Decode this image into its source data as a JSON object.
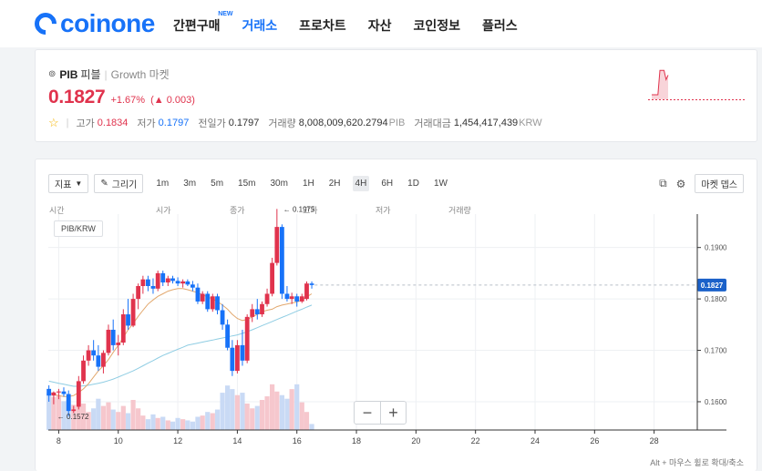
{
  "header": {
    "logo_text": "coinone",
    "nav": [
      {
        "label": "간편구매",
        "badge": "NEW"
      },
      {
        "label": "거래소"
      },
      {
        "label": "프로차트"
      },
      {
        "label": "자산"
      },
      {
        "label": "코인정보"
      },
      {
        "label": "플러스"
      }
    ]
  },
  "ticker": {
    "symbol": "PIB",
    "korean_name": "피블",
    "separator": "|",
    "market": "Growth 마켓",
    "price": "0.1827",
    "change_rate": "+1.67%",
    "change_arrow": "▲",
    "change_amount": "0.003",
    "stats": {
      "high_label": "고가",
      "high": "0.1834",
      "low_label": "저가",
      "low": "0.1797",
      "prev_label": "전일가",
      "prev": "0.1797",
      "volume_label": "거래량",
      "volume": "8,008,009,620.2794",
      "volume_unit": "PIB",
      "amount_label": "거래대금",
      "amount": "1,454,417,439",
      "amount_unit": "KRW"
    },
    "colors": {
      "up": "#e0334d",
      "down": "#1772f8",
      "accent": "#1772f8"
    }
  },
  "toolbar": {
    "indicator_label": "지표",
    "draw_label": "그리기",
    "intervals": [
      "1m",
      "3m",
      "5m",
      "15m",
      "30m",
      "1H",
      "2H",
      "4H",
      "6H",
      "1D",
      "1W"
    ],
    "active_interval": "4H",
    "market_depth_label": "마켓 뎁스"
  },
  "legend": {
    "time": "시간",
    "open": "시가",
    "close": "종가",
    "high": "고가",
    "low": "저가",
    "volume": "거래량"
  },
  "pair_label": "PIB/KRW",
  "zoom": {
    "minus": "−",
    "plus": "+"
  },
  "hint": "Alt + 마우스 휠로 확대/축소",
  "chart_data": {
    "type": "candlestick",
    "pair": "PIB/KRW",
    "interval": "4H",
    "x_ticks": [
      "8",
      "10",
      "12",
      "14",
      "16",
      "18",
      "20",
      "22",
      "24",
      "26",
      "28"
    ],
    "x_range": [
      7.65,
      29.45
    ],
    "y_ticks": [
      "0.1900",
      "0.1800",
      "0.1700",
      "0.1600"
    ],
    "y_range": [
      0.1545,
      0.1965
    ],
    "current_price": 0.1827,
    "current_price_label": "0.1827",
    "max_marker": {
      "x": 15.45,
      "value": 0.1975,
      "label": "0.1975"
    },
    "min_marker": {
      "x": 7.95,
      "value": 0.1572,
      "label": "0.1572"
    },
    "up_color": "#e0334d",
    "down_color": "#1772f8",
    "candles": [
      {
        "x": 7.67,
        "o": 0.1625,
        "h": 0.1632,
        "l": 0.16,
        "c": 0.1612
      },
      {
        "x": 7.83,
        "o": 0.1612,
        "h": 0.162,
        "l": 0.1595,
        "c": 0.1618
      },
      {
        "x": 8.0,
        "o": 0.1618,
        "h": 0.1625,
        "l": 0.1605,
        "c": 0.162
      },
      {
        "x": 8.17,
        "o": 0.162,
        "h": 0.1628,
        "l": 0.161,
        "c": 0.1615
      },
      {
        "x": 8.33,
        "o": 0.1615,
        "h": 0.1622,
        "l": 0.1572,
        "c": 0.1582
      },
      {
        "x": 8.5,
        "o": 0.1582,
        "h": 0.1592,
        "l": 0.1578,
        "c": 0.1585
      },
      {
        "x": 8.67,
        "o": 0.159,
        "h": 0.165,
        "l": 0.1585,
        "c": 0.164
      },
      {
        "x": 8.83,
        "o": 0.164,
        "h": 0.169,
        "l": 0.1635,
        "c": 0.168
      },
      {
        "x": 9.0,
        "o": 0.168,
        "h": 0.171,
        "l": 0.167,
        "c": 0.17
      },
      {
        "x": 9.17,
        "o": 0.17,
        "h": 0.172,
        "l": 0.168,
        "c": 0.169
      },
      {
        "x": 9.33,
        "o": 0.169,
        "h": 0.171,
        "l": 0.166,
        "c": 0.1668
      },
      {
        "x": 9.5,
        "o": 0.1668,
        "h": 0.17,
        "l": 0.1655,
        "c": 0.1695
      },
      {
        "x": 9.67,
        "o": 0.1695,
        "h": 0.175,
        "l": 0.169,
        "c": 0.174
      },
      {
        "x": 9.83,
        "o": 0.174,
        "h": 0.176,
        "l": 0.17,
        "c": 0.171
      },
      {
        "x": 10.0,
        "o": 0.171,
        "h": 0.173,
        "l": 0.169,
        "c": 0.1715
      },
      {
        "x": 10.17,
        "o": 0.1715,
        "h": 0.178,
        "l": 0.171,
        "c": 0.177
      },
      {
        "x": 10.33,
        "o": 0.177,
        "h": 0.18,
        "l": 0.174,
        "c": 0.1748
      },
      {
        "x": 10.5,
        "o": 0.1748,
        "h": 0.181,
        "l": 0.1745,
        "c": 0.18
      },
      {
        "x": 10.67,
        "o": 0.18,
        "h": 0.183,
        "l": 0.178,
        "c": 0.1825
      },
      {
        "x": 10.83,
        "o": 0.1825,
        "h": 0.1845,
        "l": 0.181,
        "c": 0.1838
      },
      {
        "x": 11.0,
        "o": 0.1838,
        "h": 0.1845,
        "l": 0.1815,
        "c": 0.1825
      },
      {
        "x": 11.17,
        "o": 0.1825,
        "h": 0.184,
        "l": 0.181,
        "c": 0.182
      },
      {
        "x": 11.33,
        "o": 0.182,
        "h": 0.1855,
        "l": 0.1815,
        "c": 0.185
      },
      {
        "x": 11.5,
        "o": 0.185,
        "h": 0.1855,
        "l": 0.1825,
        "c": 0.1832
      },
      {
        "x": 11.67,
        "o": 0.1832,
        "h": 0.1845,
        "l": 0.1825,
        "c": 0.184
      },
      {
        "x": 11.83,
        "o": 0.184,
        "h": 0.1845,
        "l": 0.183,
        "c": 0.1835
      },
      {
        "x": 12.0,
        "o": 0.1835,
        "h": 0.1842,
        "l": 0.1825,
        "c": 0.183
      },
      {
        "x": 12.17,
        "o": 0.183,
        "h": 0.1838,
        "l": 0.1822,
        "c": 0.1834
      },
      {
        "x": 12.33,
        "o": 0.1834,
        "h": 0.1838,
        "l": 0.1825,
        "c": 0.1828
      },
      {
        "x": 12.5,
        "o": 0.1828,
        "h": 0.1835,
        "l": 0.1815,
        "c": 0.1822
      },
      {
        "x": 12.67,
        "o": 0.1822,
        "h": 0.183,
        "l": 0.179,
        "c": 0.1795
      },
      {
        "x": 12.83,
        "o": 0.1795,
        "h": 0.1815,
        "l": 0.179,
        "c": 0.181
      },
      {
        "x": 13.0,
        "o": 0.181,
        "h": 0.1815,
        "l": 0.1775,
        "c": 0.178
      },
      {
        "x": 13.17,
        "o": 0.178,
        "h": 0.181,
        "l": 0.1775,
        "c": 0.1805
      },
      {
        "x": 13.33,
        "o": 0.1805,
        "h": 0.181,
        "l": 0.177,
        "c": 0.1778
      },
      {
        "x": 13.5,
        "o": 0.1778,
        "h": 0.179,
        "l": 0.174,
        "c": 0.175
      },
      {
        "x": 13.67,
        "o": 0.175,
        "h": 0.176,
        "l": 0.17,
        "c": 0.1705
      },
      {
        "x": 13.83,
        "o": 0.1705,
        "h": 0.172,
        "l": 0.165,
        "c": 0.166
      },
      {
        "x": 14.0,
        "o": 0.166,
        "h": 0.172,
        "l": 0.1655,
        "c": 0.171
      },
      {
        "x": 14.17,
        "o": 0.171,
        "h": 0.174,
        "l": 0.167,
        "c": 0.168
      },
      {
        "x": 14.33,
        "o": 0.168,
        "h": 0.177,
        "l": 0.1675,
        "c": 0.1765
      },
      {
        "x": 14.5,
        "o": 0.1765,
        "h": 0.179,
        "l": 0.1755,
        "c": 0.178
      },
      {
        "x": 14.67,
        "o": 0.178,
        "h": 0.18,
        "l": 0.176,
        "c": 0.177
      },
      {
        "x": 14.83,
        "o": 0.177,
        "h": 0.1795,
        "l": 0.1765,
        "c": 0.179
      },
      {
        "x": 15.0,
        "o": 0.179,
        "h": 0.182,
        "l": 0.1785,
        "c": 0.181
      },
      {
        "x": 15.17,
        "o": 0.181,
        "h": 0.188,
        "l": 0.1805,
        "c": 0.187
      },
      {
        "x": 15.33,
        "o": 0.187,
        "h": 0.1975,
        "l": 0.1865,
        "c": 0.194
      },
      {
        "x": 15.5,
        "o": 0.194,
        "h": 0.1945,
        "l": 0.18,
        "c": 0.181
      },
      {
        "x": 15.67,
        "o": 0.181,
        "h": 0.1825,
        "l": 0.1795,
        "c": 0.18
      },
      {
        "x": 15.83,
        "o": 0.18,
        "h": 0.1812,
        "l": 0.179,
        "c": 0.1805
      },
      {
        "x": 16.0,
        "o": 0.1805,
        "h": 0.181,
        "l": 0.1785,
        "c": 0.1795
      },
      {
        "x": 16.17,
        "o": 0.1795,
        "h": 0.181,
        "l": 0.1792,
        "c": 0.1805
      },
      {
        "x": 16.33,
        "o": 0.18,
        "h": 0.1834,
        "l": 0.1797,
        "c": 0.183
      },
      {
        "x": 16.5,
        "o": 0.183,
        "h": 0.1834,
        "l": 0.182,
        "c": 0.1827
      }
    ],
    "volume_max": 1,
    "volume": [
      0.62,
      0.55,
      0.58,
      0.48,
      0.5,
      0.42,
      0.38,
      0.44,
      0.3,
      0.36,
      0.52,
      0.4,
      0.46,
      0.34,
      0.3,
      0.4,
      0.28,
      0.5,
      0.36,
      0.24,
      0.18,
      0.26,
      0.2,
      0.22,
      0.16,
      0.14,
      0.2,
      0.18,
      0.16,
      0.14,
      0.22,
      0.24,
      0.3,
      0.28,
      0.34,
      0.62,
      0.74,
      0.68,
      0.58,
      0.62,
      0.44,
      0.36,
      0.4,
      0.5,
      0.56,
      0.76,
      0.64,
      0.58,
      0.52,
      0.68,
      0.76,
      0.46,
      0.3,
      0.1
    ],
    "ma_short": [
      0.1618,
      0.1614,
      0.1612,
      0.161,
      0.161,
      0.1612,
      0.1618,
      0.1625,
      0.1635,
      0.1648,
      0.166,
      0.167,
      0.1682,
      0.1696,
      0.171,
      0.1725,
      0.174,
      0.1752,
      0.1766,
      0.1778,
      0.179,
      0.1798,
      0.1805,
      0.181,
      0.1815,
      0.1818,
      0.182,
      0.182,
      0.1818,
      0.1815,
      0.1812,
      0.1808,
      0.1804,
      0.18,
      0.1795,
      0.1788,
      0.178,
      0.177,
      0.1762,
      0.1758,
      0.176,
      0.1765,
      0.177,
      0.1775,
      0.1778,
      0.178,
      0.1785,
      0.1788,
      0.179,
      0.1792,
      0.1794,
      0.1798,
      0.1804,
      0.181
    ],
    "ma_long": [
      0.164,
      0.1638,
      0.1636,
      0.1634,
      0.1632,
      0.163,
      0.163,
      0.1631,
      0.1632,
      0.1634,
      0.1636,
      0.1638,
      0.1641,
      0.1644,
      0.1648,
      0.1652,
      0.1656,
      0.166,
      0.1665,
      0.167,
      0.1675,
      0.168,
      0.1685,
      0.169,
      0.1694,
      0.1698,
      0.1702,
      0.1706,
      0.171,
      0.1712,
      0.1714,
      0.1716,
      0.1718,
      0.172,
      0.1722,
      0.1724,
      0.1726,
      0.1728,
      0.173,
      0.1733,
      0.1736,
      0.174,
      0.1744,
      0.1748,
      0.1752,
      0.1756,
      0.176,
      0.1764,
      0.1768,
      0.1772,
      0.1776,
      0.178,
      0.1784,
      0.1788
    ],
    "mini_chart": [
      0.1797,
      0.1797,
      0.1797,
      0.1797,
      0.1834,
      0.1834,
      0.1834,
      0.182,
      0.1827
    ]
  }
}
